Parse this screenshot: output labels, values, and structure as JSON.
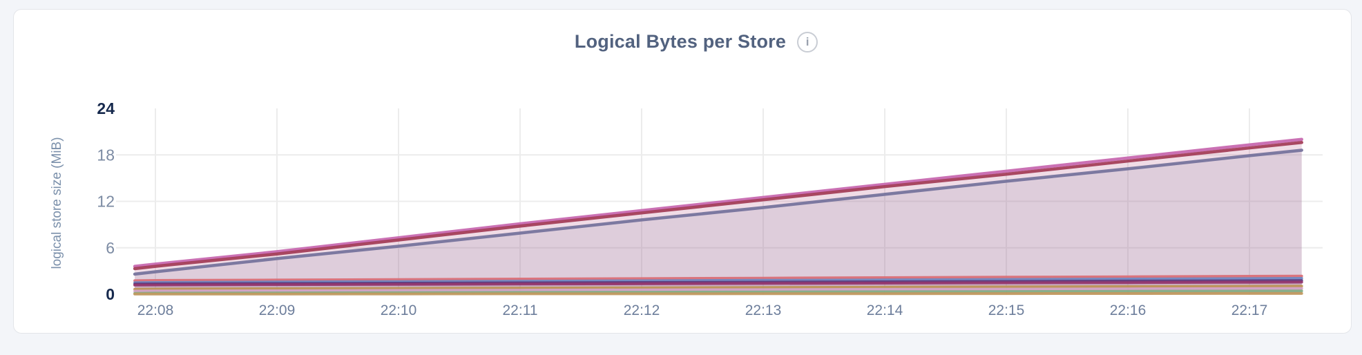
{
  "page": {
    "background": "#f3f5f9"
  },
  "card": {
    "background": "#ffffff",
    "border_color": "#e3e5e9"
  },
  "header": {
    "title": "Logical Bytes per Store",
    "info_glyph": "i"
  },
  "chart_data": {
    "type": "area",
    "title": "Logical Bytes per Store",
    "xlabel": "",
    "ylabel": "logical store size (MiB)",
    "unit": "MiB",
    "ylim": [
      0,
      24
    ],
    "yticks": [
      0,
      6,
      12,
      18,
      24
    ],
    "emphasized_yticks": [
      0,
      24
    ],
    "grid": true,
    "legend": "none",
    "x_ticks": [
      {
        "minute": 8,
        "label": "22:08"
      },
      {
        "minute": 9,
        "label": "22:09"
      },
      {
        "minute": 10,
        "label": "22:10"
      },
      {
        "minute": 11,
        "label": "22:11"
      },
      {
        "minute": 12,
        "label": "22:12"
      },
      {
        "minute": 13,
        "label": "22:13"
      },
      {
        "minute": 14,
        "label": "22:14"
      },
      {
        "minute": 15,
        "label": "22:15"
      },
      {
        "minute": 16,
        "label": "22:16"
      },
      {
        "minute": 17,
        "label": "22:17"
      }
    ],
    "sample_minutes": [
      7.83,
      8,
      9,
      10,
      11,
      12,
      13,
      14,
      15,
      16,
      17,
      17.43
    ],
    "series": [
      {
        "id": "series-1",
        "color": "#c565ae",
        "fill_opacity": 0.1,
        "line_width": 4.5,
        "values": [
          3.6,
          3.9,
          5.5,
          7.3,
          9.1,
          10.8,
          12.5,
          14.2,
          15.9,
          17.6,
          19.3,
          20.0
        ]
      },
      {
        "id": "series-2",
        "color": "#a23a55",
        "fill_opacity": 0.1,
        "line_width": 4.5,
        "values": [
          3.3,
          3.6,
          5.2,
          7.0,
          8.8,
          10.5,
          12.2,
          13.9,
          15.5,
          17.2,
          18.9,
          19.6
        ]
      },
      {
        "id": "series-3",
        "color": "#73719b",
        "fill_opacity": 0.14,
        "line_width": 4.5,
        "values": [
          2.6,
          2.9,
          4.6,
          6.2,
          7.9,
          9.6,
          11.2,
          12.9,
          14.6,
          16.2,
          17.9,
          18.6
        ]
      },
      {
        "id": "series-4",
        "color": "#d96d75",
        "fill_opacity": 0.06,
        "line_width": 4,
        "values": [
          1.75,
          1.78,
          1.84,
          1.9,
          1.96,
          2.02,
          2.08,
          2.14,
          2.2,
          2.26,
          2.32,
          2.35
        ]
      },
      {
        "id": "series-5",
        "color": "#6c86c1",
        "fill_opacity": 0.06,
        "line_width": 4,
        "values": [
          1.5,
          1.52,
          1.58,
          1.63,
          1.69,
          1.74,
          1.8,
          1.85,
          1.91,
          1.96,
          2.02,
          2.05
        ]
      },
      {
        "id": "series-6",
        "color": "#5b3a7d",
        "fill_opacity": 0.06,
        "line_width": 4,
        "values": [
          1.32,
          1.34,
          1.38,
          1.43,
          1.47,
          1.52,
          1.56,
          1.61,
          1.65,
          1.7,
          1.74,
          1.76
        ]
      },
      {
        "id": "series-7",
        "color": "#94356c",
        "fill_opacity": 0.06,
        "line_width": 4,
        "values": [
          1.18,
          1.2,
          1.24,
          1.28,
          1.31,
          1.35,
          1.39,
          1.43,
          1.47,
          1.5,
          1.54,
          1.56
        ]
      },
      {
        "id": "series-8",
        "color": "#bd9254",
        "fill_opacity": 0.06,
        "line_width": 4,
        "values": [
          0.65,
          0.67,
          0.71,
          0.75,
          0.79,
          0.83,
          0.87,
          0.91,
          0.95,
          0.99,
          1.03,
          1.05
        ]
      },
      {
        "id": "series-9",
        "color": "#d2a3c6",
        "fill_opacity": 0.06,
        "line_width": 4,
        "values": [
          0.4,
          0.42,
          0.45,
          0.49,
          0.52,
          0.56,
          0.59,
          0.63,
          0.66,
          0.7,
          0.73,
          0.75
        ]
      },
      {
        "id": "series-10",
        "color": "#82ae85",
        "fill_opacity": 0.06,
        "line_width": 4,
        "values": [
          0.12,
          0.14,
          0.17,
          0.2,
          0.23,
          0.26,
          0.29,
          0.32,
          0.35,
          0.38,
          0.41,
          0.42
        ]
      },
      {
        "id": "series-11",
        "color": "#c1995e",
        "fill_opacity": 0.06,
        "line_width": 4,
        "values": [
          0.02,
          0.02,
          0.03,
          0.04,
          0.05,
          0.05,
          0.06,
          0.07,
          0.08,
          0.09,
          0.1,
          0.1
        ]
      }
    ]
  }
}
